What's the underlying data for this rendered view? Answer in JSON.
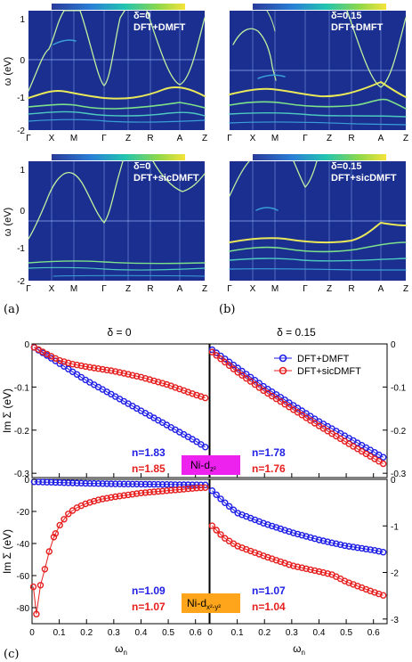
{
  "panels": {
    "a": "(a)",
    "b": "(b)",
    "c": "(c)"
  },
  "colors": {
    "band_bg": "#1a2f8f",
    "dmft_blue": "#1e1ee6",
    "sic_red": "#e61e1e",
    "ni_z2_badge": "#ee22ee",
    "ni_x2y2_badge": "#ffa51c"
  },
  "band_panels": [
    {
      "delta_label": "δ=0",
      "method": "DFT+DMFT"
    },
    {
      "delta_label": "δ=0.15",
      "method": "DFT+DMFT"
    },
    {
      "delta_label": "δ=0",
      "method": "DFT+sicDMFT"
    },
    {
      "delta_label": "δ=0.15",
      "method": "DFT+sicDMFT"
    }
  ],
  "band_axis": {
    "ylabel": "ω (eV)",
    "ytick_labels": [
      "1",
      "0",
      "-1",
      "-2"
    ],
    "kpath_labels": [
      "Γ",
      "X",
      "M",
      "Γ",
      "Z",
      "R",
      "A",
      "Z"
    ]
  },
  "selfenergy": {
    "col_titles": [
      "δ = 0",
      "δ = 0.15"
    ],
    "ylabel": "Im Σ (eV)",
    "xlabel": "ω",
    "xlabel_sub": "n",
    "legend": [
      "DFT+DMFT",
      "DFT+sicDMFT"
    ],
    "xtick_labels": [
      "0",
      "0.1",
      "0.2",
      "0.3",
      "0.4",
      "0.5",
      "0.6"
    ],
    "top_left_yticks": [
      "0",
      "-0.1",
      "-0.2",
      "-0.3"
    ],
    "top_right_yticks": [
      "0",
      "-0.1",
      "-0.2",
      "-0.3"
    ],
    "bottom_left_yticks": [
      "0",
      "-20",
      "-40",
      "-60",
      "-80"
    ],
    "bottom_right_yticks": [
      "0",
      "-1",
      "-2",
      "-3"
    ],
    "orbital_top": "Ni-d",
    "orbital_top_sub": "z²",
    "orbital_bottom": "Ni-d",
    "orbital_bottom_sub": "x²-y²",
    "occupations": {
      "top_left": [
        "n=1.83",
        "n=1.85"
      ],
      "top_right": [
        "n=1.78",
        "n=1.76"
      ],
      "bottom_left": [
        "n=1.09",
        "n=1.07"
      ],
      "bottom_right": [
        "n=1.07",
        "n=1.04"
      ]
    }
  },
  "chart_data": [
    {
      "type": "scatter",
      "panel": "top-left",
      "xlim": [
        0,
        0.65
      ],
      "ylim": [
        -0.31,
        0
      ],
      "series": [
        {
          "name": "DFT+DMFT",
          "x": [
            0.0,
            0.1,
            0.2,
            0.3,
            0.4,
            0.5,
            0.6,
            0.65
          ],
          "values": [
            -0.005,
            -0.045,
            -0.085,
            -0.12,
            -0.155,
            -0.19,
            -0.225,
            -0.245
          ]
        },
        {
          "name": "DFT+sicDMFT",
          "x": [
            0.0,
            0.05,
            0.1,
            0.15,
            0.2,
            0.3,
            0.4,
            0.5,
            0.6,
            0.65
          ],
          "values": [
            -0.005,
            -0.022,
            -0.038,
            -0.047,
            -0.053,
            -0.063,
            -0.077,
            -0.095,
            -0.118,
            -0.128
          ]
        }
      ]
    },
    {
      "type": "scatter",
      "panel": "top-right",
      "xlim": [
        0,
        0.65
      ],
      "ylim": [
        -0.31,
        0
      ],
      "series": [
        {
          "name": "DFT+DMFT",
          "x": [
            0.0,
            0.1,
            0.2,
            0.3,
            0.4,
            0.5,
            0.6,
            0.65
          ],
          "values": [
            -0.01,
            -0.055,
            -0.1,
            -0.14,
            -0.18,
            -0.215,
            -0.25,
            -0.268
          ]
        },
        {
          "name": "DFT+sicDMFT",
          "x": [
            0.0,
            0.1,
            0.2,
            0.3,
            0.4,
            0.5,
            0.6,
            0.65
          ],
          "values": [
            -0.015,
            -0.065,
            -0.11,
            -0.15,
            -0.19,
            -0.228,
            -0.265,
            -0.283
          ]
        }
      ]
    },
    {
      "type": "scatter",
      "panel": "bottom-left",
      "xlim": [
        0,
        0.65
      ],
      "ylim": [
        -90,
        0
      ],
      "series": [
        {
          "name": "DFT+DMFT",
          "x": [
            0.0,
            0.1,
            0.2,
            0.3,
            0.4,
            0.5,
            0.6,
            0.65
          ],
          "values": [
            -1.5,
            -2,
            -2.5,
            -2.8,
            -3,
            -3.2,
            -3.4,
            -3.5
          ]
        },
        {
          "name": "DFT+sicDMFT",
          "x": [
            0.005,
            0.016,
            0.031,
            0.047,
            0.063,
            0.08,
            0.1,
            0.13,
            0.16,
            0.2,
            0.25,
            0.3,
            0.4,
            0.5,
            0.6,
            0.65
          ],
          "values": [
            -67,
            -84,
            -66,
            -56,
            -45,
            -36,
            -29,
            -22,
            -18,
            -15,
            -12.5,
            -11,
            -8.5,
            -7,
            -5.5,
            -5
          ]
        }
      ]
    },
    {
      "type": "scatter",
      "panel": "bottom-right",
      "xlim": [
        0,
        0.65
      ],
      "ylim": [
        -3.1,
        0
      ],
      "series": [
        {
          "name": "DFT+DMFT",
          "x": [
            0.0,
            0.05,
            0.1,
            0.2,
            0.3,
            0.4,
            0.5,
            0.6,
            0.65
          ],
          "values": [
            -0.2,
            -0.48,
            -0.72,
            -0.95,
            -1.14,
            -1.3,
            -1.43,
            -1.52,
            -1.58
          ]
        },
        {
          "name": "DFT+sicDMFT",
          "x": [
            0.0,
            0.05,
            0.1,
            0.2,
            0.3,
            0.4,
            0.45,
            0.5,
            0.6,
            0.65
          ],
          "values": [
            -0.95,
            -1.25,
            -1.43,
            -1.65,
            -1.85,
            -1.98,
            -2.05,
            -2.2,
            -2.42,
            -2.52
          ]
        }
      ]
    }
  ]
}
